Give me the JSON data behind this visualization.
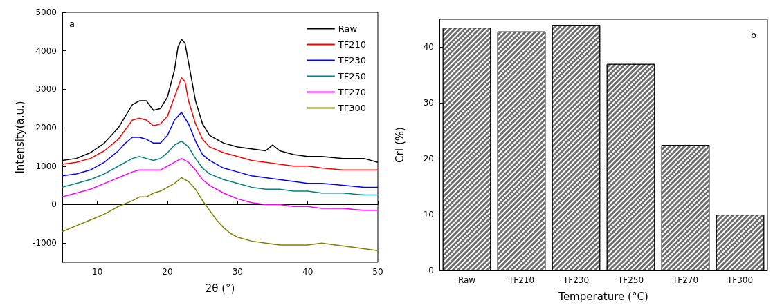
{
  "chart_data": [
    {
      "type": "line",
      "xlabel": "2θ (°)",
      "ylabel": "Intensity(a.u.)",
      "annotations": [
        "a"
      ],
      "xlim": [
        5,
        50
      ],
      "xticks": [
        10,
        20,
        30,
        40,
        50
      ],
      "ylim": [
        -1500,
        5000
      ],
      "yticks": [
        -1000,
        0,
        1000,
        2000,
        3000,
        4000,
        5000
      ],
      "legend": "top right",
      "marker": "none",
      "line_style": "solid",
      "series": [
        {
          "name": "Raw",
          "color": "#000000",
          "x": [
            5,
            7,
            9,
            11,
            13,
            14,
            15,
            16,
            17,
            18,
            19,
            20,
            21,
            21.5,
            22,
            22.5,
            23,
            24,
            25,
            26,
            27,
            28,
            30,
            32,
            34,
            35,
            36,
            38,
            40,
            42,
            45,
            48,
            50
          ],
          "values": [
            1150,
            1200,
            1350,
            1600,
            2000,
            2300,
            2600,
            2700,
            2700,
            2450,
            2500,
            2800,
            3500,
            4100,
            4300,
            4200,
            3700,
            2700,
            2100,
            1800,
            1700,
            1600,
            1500,
            1450,
            1400,
            1550,
            1400,
            1300,
            1250,
            1250,
            1200,
            1200,
            1100
          ]
        },
        {
          "name": "TF210",
          "color": "#ff0000",
          "x": [
            5,
            7,
            9,
            11,
            13,
            14,
            15,
            16,
            17,
            18,
            19,
            20,
            21,
            22,
            22.5,
            23,
            24,
            25,
            26,
            28,
            30,
            32,
            34,
            36,
            38,
            40,
            42,
            45,
            48,
            50
          ],
          "values": [
            1050,
            1100,
            1200,
            1400,
            1700,
            1950,
            2200,
            2250,
            2200,
            2050,
            2100,
            2300,
            2800,
            3300,
            3200,
            2700,
            2100,
            1700,
            1500,
            1350,
            1250,
            1150,
            1100,
            1050,
            1000,
            1000,
            950,
            900,
            900,
            900
          ]
        },
        {
          "name": "TF230",
          "color": "#0000ff",
          "x": [
            5,
            7,
            9,
            11,
            13,
            14,
            15,
            16,
            17,
            18,
            19,
            20,
            21,
            22,
            23,
            24,
            25,
            26,
            28,
            30,
            32,
            34,
            36,
            38,
            40,
            42,
            45,
            48,
            50
          ],
          "values": [
            750,
            800,
            900,
            1100,
            1400,
            1600,
            1750,
            1750,
            1700,
            1600,
            1600,
            1800,
            2200,
            2400,
            2100,
            1650,
            1300,
            1150,
            950,
            850,
            750,
            700,
            650,
            600,
            550,
            550,
            500,
            450,
            450
          ]
        },
        {
          "name": "TF250",
          "color": "#008080",
          "x": [
            5,
            7,
            9,
            11,
            13,
            15,
            16,
            17,
            18,
            19,
            20,
            21,
            22,
            23,
            24,
            25,
            26,
            28,
            30,
            32,
            34,
            36,
            38,
            40,
            42,
            45,
            48,
            50
          ],
          "values": [
            450,
            550,
            650,
            800,
            1000,
            1200,
            1250,
            1200,
            1150,
            1200,
            1350,
            1550,
            1650,
            1500,
            1200,
            950,
            800,
            650,
            550,
            450,
            400,
            400,
            350,
            350,
            300,
            300,
            250,
            250
          ]
        },
        {
          "name": "TF270",
          "color": "#ff00ff",
          "x": [
            5,
            7,
            9,
            11,
            13,
            15,
            16,
            17,
            18,
            19,
            20,
            21,
            22,
            23,
            24,
            25,
            26,
            28,
            30,
            32,
            34,
            36,
            38,
            40,
            42,
            45,
            48,
            50
          ],
          "values": [
            200,
            300,
            400,
            550,
            700,
            850,
            900,
            900,
            900,
            900,
            1000,
            1100,
            1200,
            1100,
            900,
            650,
            500,
            300,
            150,
            50,
            0,
            0,
            -50,
            -50,
            -100,
            -100,
            -150,
            -150
          ]
        },
        {
          "name": "TF300",
          "color": "#808000",
          "x": [
            5,
            7,
            9,
            11,
            13,
            15,
            16,
            17,
            18,
            19,
            20,
            21,
            22,
            23,
            24,
            25,
            26,
            27,
            28,
            29,
            30,
            32,
            34,
            36,
            38,
            40,
            42,
            44,
            46,
            48,
            50
          ],
          "values": [
            -700,
            -550,
            -400,
            -250,
            -50,
            100,
            200,
            200,
            300,
            350,
            450,
            550,
            700,
            600,
            400,
            100,
            -150,
            -400,
            -600,
            -750,
            -850,
            -950,
            -1000,
            -1050,
            -1050,
            -1050,
            -1000,
            -1050,
            -1100,
            -1150,
            -1200
          ]
        }
      ]
    },
    {
      "type": "bar",
      "xlabel": "Temperature (°C)",
      "ylabel": "CrI (%)",
      "annotations": [
        "b"
      ],
      "categories": [
        "Raw",
        "TF210",
        "TF230",
        "TF250",
        "TF270",
        "TF300"
      ],
      "values": [
        43.5,
        42.8,
        44,
        37,
        22.5,
        10
      ],
      "color": "#6e6e6e",
      "ylim": [
        0,
        45
      ],
      "yticks": [
        0,
        10,
        20,
        30,
        40
      ],
      "legend": false
    }
  ]
}
